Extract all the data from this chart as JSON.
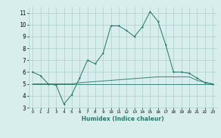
{
  "xlabel": "Humidex (Indice chaleur)",
  "x_values": [
    0,
    1,
    2,
    3,
    4,
    5,
    6,
    7,
    8,
    9,
    10,
    11,
    12,
    13,
    14,
    15,
    16,
    17,
    18,
    19,
    20,
    21,
    22,
    23
  ],
  "main_line": [
    6.0,
    5.7,
    5.0,
    4.9,
    3.3,
    4.1,
    5.5,
    7.0,
    6.7,
    7.6,
    9.9,
    9.9,
    9.5,
    9.0,
    9.8,
    11.1,
    10.3,
    8.3,
    6.0,
    6.0,
    5.9,
    5.5,
    5.1,
    5.0
  ],
  "line2": [
    5.0,
    5.0,
    5.0,
    5.0,
    5.0,
    5.0,
    5.1,
    5.15,
    5.2,
    5.25,
    5.3,
    5.35,
    5.4,
    5.45,
    5.5,
    5.55,
    5.6,
    5.6,
    5.6,
    5.6,
    5.6,
    5.3,
    5.15,
    5.0
  ],
  "line3": [
    5.0,
    5.0,
    5.0,
    5.0,
    5.0,
    5.0,
    5.0,
    5.0,
    5.0,
    5.0,
    5.0,
    5.0,
    5.0,
    5.0,
    5.0,
    5.0,
    5.0,
    5.0,
    5.0,
    5.0,
    5.0,
    5.0,
    5.0,
    5.0
  ],
  "line_color": "#2a7a6a",
  "bg_color": "#d8eeed",
  "grid_color": "#a8cccc",
  "axis_label_color": "#2a7a6a",
  "ylim": [
    3,
    11.5
  ],
  "yticks": [
    3,
    4,
    5,
    6,
    7,
    8,
    9,
    10,
    11
  ],
  "xlim": [
    -0.5,
    23.5
  ],
  "xticks": [
    0,
    1,
    2,
    3,
    4,
    5,
    6,
    7,
    8,
    9,
    10,
    11,
    12,
    13,
    14,
    15,
    16,
    17,
    18,
    19,
    20,
    21,
    22,
    23
  ]
}
